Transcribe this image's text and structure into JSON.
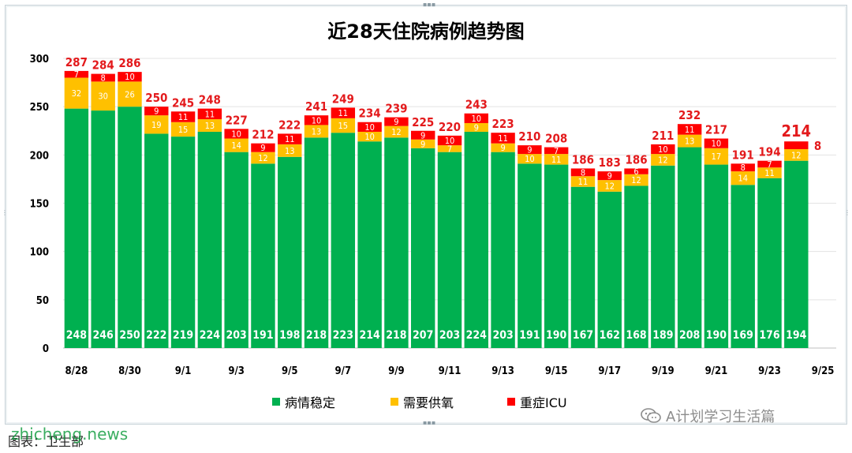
{
  "chart_data": {
    "type": "bar",
    "stacked": true,
    "title": "近28天住院病例趋势图",
    "categories": [
      "8/28",
      "8/29",
      "8/30",
      "8/31",
      "9/1",
      "9/2",
      "9/3",
      "9/4",
      "9/5",
      "9/6",
      "9/7",
      "9/8",
      "9/9",
      "9/10",
      "9/11",
      "9/12",
      "9/13",
      "9/14",
      "9/15",
      "9/16",
      "9/17",
      "9/18",
      "9/19",
      "9/20",
      "9/21",
      "9/22",
      "9/23",
      "9/24",
      "9/25"
    ],
    "tick_labels": [
      "8/28",
      "",
      "8/30",
      "",
      "9/1",
      "",
      "9/3",
      "",
      "9/5",
      "",
      "9/7",
      "",
      "9/9",
      "",
      "9/11",
      "",
      "9/13",
      "",
      "9/15",
      "",
      "9/17",
      "",
      "9/19",
      "",
      "9/21",
      "",
      "9/23",
      "",
      "9/25"
    ],
    "series": [
      {
        "name": "病情稳定",
        "color": "#00b050",
        "values": [
          248,
          246,
          250,
          222,
          219,
          224,
          203,
          191,
          198,
          218,
          223,
          214,
          218,
          207,
          203,
          224,
          203,
          191,
          190,
          167,
          162,
          168,
          189,
          208,
          190,
          169,
          176,
          194,
          null
        ]
      },
      {
        "name": "需要供氧",
        "color": "#ffc000",
        "values": [
          32,
          30,
          26,
          19,
          15,
          13,
          14,
          12,
          13,
          13,
          15,
          10,
          12,
          9,
          7,
          9,
          9,
          10,
          11,
          11,
          12,
          12,
          12,
          13,
          17,
          14,
          11,
          12,
          null
        ]
      },
      {
        "name": "重症ICU",
        "color": "#ff0000",
        "values": [
          7,
          8,
          10,
          9,
          11,
          11,
          10,
          9,
          11,
          10,
          11,
          10,
          9,
          9,
          10,
          10,
          11,
          9,
          7,
          8,
          9,
          6,
          10,
          11,
          10,
          8,
          7,
          8,
          null
        ]
      }
    ],
    "totals": [
      287,
      284,
      286,
      250,
      245,
      248,
      227,
      212,
      222,
      241,
      249,
      234,
      239,
      225,
      220,
      243,
      223,
      210,
      208,
      186,
      183,
      186,
      211,
      232,
      217,
      191,
      194,
      214,
      null
    ],
    "ylim": [
      0,
      300
    ],
    "yticks": [
      0,
      50,
      100,
      150,
      200,
      250,
      300
    ],
    "grid": true,
    "legend_position": "bottom"
  },
  "caption": "图表：卫生部",
  "watermark_text": "zhicheng.news",
  "wechat_label": "A计划学习生活篇"
}
